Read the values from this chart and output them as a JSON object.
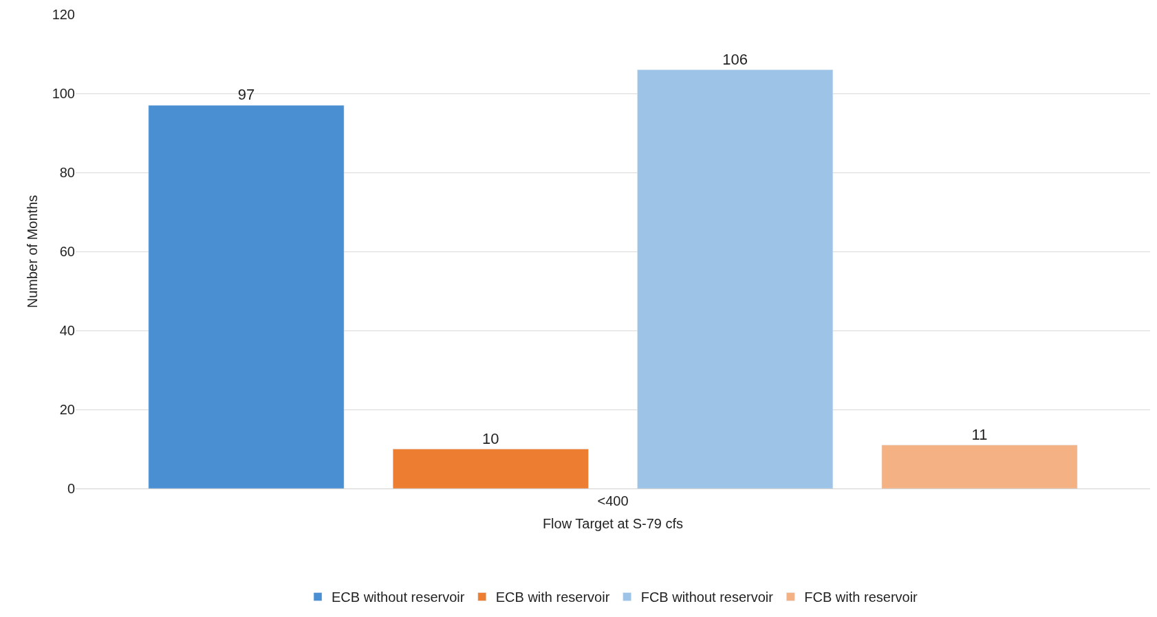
{
  "chart_data": {
    "type": "bar",
    "xlabel": "Flow Target at S-79 cfs",
    "ylabel": "Number of Months",
    "categories": [
      "<400"
    ],
    "series": [
      {
        "name": "ECB without reservoir",
        "color": "#4a8fd2",
        "values": [
          97
        ]
      },
      {
        "name": "ECB with reservoir",
        "color": "#ed7d31",
        "values": [
          10
        ]
      },
      {
        "name": "FCB without reservoir",
        "color": "#9dc3e6",
        "values": [
          106
        ]
      },
      {
        "name": "FCB with reservoir",
        "color": "#f4b183",
        "values": [
          11
        ]
      }
    ],
    "ylim": [
      0,
      120
    ],
    "yticks": [
      0,
      20,
      40,
      60,
      80,
      100,
      120
    ],
    "grid": "y",
    "legend": "bottom",
    "data_labels": true
  }
}
